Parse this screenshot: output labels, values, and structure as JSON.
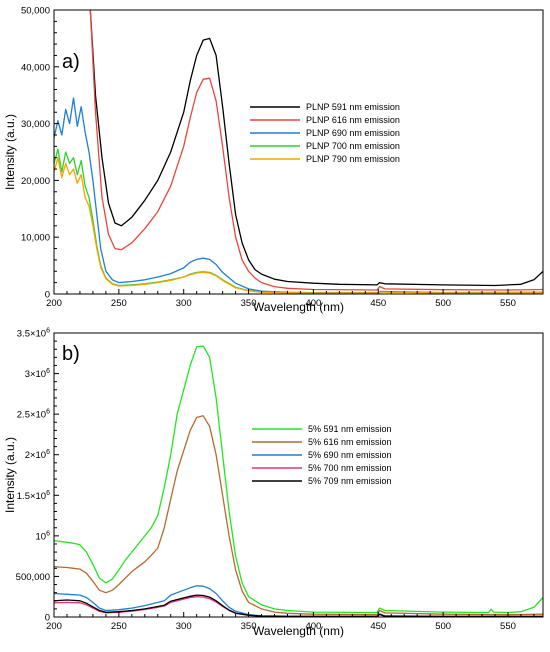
{
  "chart_data": [
    {
      "type": "line",
      "panel_label": "a)",
      "xlabel": "Wavelength (nm)",
      "ylabel": "Intensity (a.u.)",
      "xlim": [
        200,
        577
      ],
      "ylim": [
        0,
        50000
      ],
      "x_ticks": [
        200,
        250,
        300,
        350,
        400,
        450,
        500,
        550
      ],
      "x_tick_labels": [
        "200",
        "250",
        "300",
        "350",
        "400",
        "450",
        "500",
        "550"
      ],
      "y_ticks": [
        0,
        10000,
        20000,
        30000,
        40000,
        50000
      ],
      "y_tick_labels": [
        "0",
        "10,000",
        "20,000",
        "30,000",
        "40,000",
        "50,000"
      ],
      "legend_position": "right",
      "series": [
        {
          "name": "PLNP 591 nm emission",
          "color": "#000000",
          "x": [
            228,
            232,
            237,
            242,
            247,
            252,
            260,
            270,
            280,
            290,
            300,
            305,
            310,
            315,
            320,
            325,
            330,
            335,
            340,
            345,
            350,
            355,
            360,
            370,
            380,
            400,
            420,
            449,
            451,
            455,
            500,
            540,
            560,
            570,
            577
          ],
          "y": [
            50000,
            35000,
            24000,
            16000,
            12500,
            12000,
            13500,
            16500,
            20000,
            25000,
            32000,
            37500,
            42000,
            44700,
            45000,
            42000,
            33000,
            23000,
            14000,
            9000,
            6000,
            4300,
            3500,
            2600,
            2200,
            1900,
            1700,
            1600,
            2000,
            1800,
            1600,
            1500,
            1700,
            2500,
            4000
          ]
        },
        {
          "name": "PLNP 616 nm emission",
          "color": "#e8463a",
          "x": [
            228,
            232,
            237,
            242,
            247,
            252,
            260,
            270,
            280,
            290,
            300,
            305,
            310,
            315,
            320,
            325,
            330,
            335,
            340,
            345,
            350,
            355,
            360,
            370,
            380,
            400,
            449,
            451,
            455,
            500,
            550,
            577
          ],
          "y": [
            50000,
            32000,
            17000,
            10500,
            8000,
            7800,
            9000,
            11500,
            14500,
            19000,
            26000,
            31000,
            35500,
            37800,
            38000,
            34000,
            26000,
            17000,
            10000,
            6000,
            4000,
            2800,
            2000,
            1300,
            1000,
            800,
            700,
            1300,
            900,
            750,
            700,
            800
          ]
        },
        {
          "name": "PLNP 690 nm emission",
          "color": "#1f7fd6",
          "x": [
            200,
            203,
            206,
            209,
            212,
            215,
            218,
            221,
            224,
            227,
            230,
            233,
            236,
            240,
            245,
            250,
            260,
            270,
            280,
            290,
            300,
            305,
            310,
            315,
            320,
            325,
            330,
            340,
            350,
            360,
            380,
            400,
            450,
            452,
            500,
            577
          ],
          "y": [
            27500,
            30500,
            28000,
            32500,
            30000,
            34500,
            29500,
            33000,
            28500,
            25000,
            20000,
            14000,
            8000,
            4000,
            2500,
            2000,
            2200,
            2500,
            3000,
            3600,
            4600,
            5600,
            6100,
            6300,
            6100,
            5200,
            3800,
            1900,
            900,
            500,
            300,
            250,
            250,
            450,
            250,
            300
          ]
        },
        {
          "name": "PLNP 700 nm emission",
          "color": "#2fcf2f",
          "x": [
            200,
            203,
            206,
            209,
            212,
            215,
            218,
            221,
            224,
            227,
            230,
            233,
            236,
            240,
            245,
            250,
            260,
            270,
            280,
            290,
            300,
            305,
            310,
            315,
            320,
            325,
            330,
            340,
            350,
            360,
            380,
            400,
            450,
            452,
            500,
            577
          ],
          "y": [
            23000,
            25500,
            21500,
            25000,
            23000,
            24000,
            21000,
            23500,
            19000,
            17000,
            13000,
            8500,
            5000,
            2800,
            1800,
            1500,
            1600,
            1800,
            2100,
            2500,
            3000,
            3500,
            3800,
            3900,
            3800,
            3300,
            2500,
            1200,
            600,
            350,
            250,
            200,
            200,
            350,
            200,
            250
          ]
        },
        {
          "name": "PLNP 790 nm emission",
          "color": "#f5a300",
          "x": [
            200,
            203,
            206,
            209,
            212,
            215,
            218,
            221,
            224,
            227,
            230,
            233,
            236,
            240,
            245,
            250,
            260,
            270,
            280,
            290,
            300,
            305,
            310,
            315,
            320,
            325,
            330,
            340,
            350,
            360,
            380,
            400,
            450,
            452,
            500,
            577
          ],
          "y": [
            21500,
            24000,
            20500,
            23000,
            21000,
            22000,
            19500,
            21000,
            17000,
            15500,
            12000,
            8000,
            4700,
            2700,
            1700,
            1400,
            1500,
            1700,
            2000,
            2400,
            3000,
            3400,
            3700,
            3800,
            3700,
            3200,
            2400,
            1100,
            550,
            320,
            230,
            200,
            200,
            330,
            200,
            230
          ]
        }
      ]
    },
    {
      "type": "line",
      "panel_label": "b)",
      "xlabel": "Wavelength (nm)",
      "ylabel": "Intensity (a.u.)",
      "xlim": [
        200,
        577
      ],
      "ylim": [
        0,
        3500000
      ],
      "x_ticks": [
        200,
        250,
        300,
        350,
        400,
        450,
        500,
        550
      ],
      "x_tick_labels": [
        "200",
        "250",
        "300",
        "350",
        "400",
        "450",
        "500",
        "550"
      ],
      "y_ticks": [
        0,
        500000,
        1000000,
        1500000,
        2000000,
        2500000,
        3000000,
        3500000
      ],
      "y_tick_labels": [
        {
          "base": "0",
          "exp": ""
        },
        {
          "base": "500,000",
          "exp": ""
        },
        {
          "base": "10",
          "exp": "6"
        },
        {
          "base": "1.5×10",
          "exp": "6"
        },
        {
          "base": "2×10",
          "exp": "6"
        },
        {
          "base": "2.5×10",
          "exp": "6"
        },
        {
          "base": "3×10",
          "exp": "6"
        },
        {
          "base": "3.5×10",
          "exp": "6"
        }
      ],
      "legend_position": "right",
      "series": [
        {
          "name": "5% 591 nm emission",
          "color": "#22e622",
          "x": [
            200,
            205,
            210,
            215,
            220,
            225,
            230,
            235,
            240,
            245,
            250,
            255,
            260,
            265,
            270,
            275,
            280,
            285,
            290,
            295,
            300,
            305,
            310,
            315,
            320,
            325,
            330,
            335,
            340,
            345,
            350,
            360,
            370,
            380,
            400,
            449,
            451,
            455,
            500,
            535,
            537,
            539,
            550,
            560,
            570,
            577
          ],
          "y": [
            940000,
            930000,
            920000,
            910000,
            890000,
            800000,
            650000,
            480000,
            420000,
            470000,
            580000,
            700000,
            800000,
            900000,
            1000000,
            1100000,
            1250000,
            1600000,
            2000000,
            2500000,
            2800000,
            3100000,
            3330000,
            3340000,
            3200000,
            2700000,
            2000000,
            1300000,
            750000,
            420000,
            250000,
            150000,
            100000,
            80000,
            60000,
            55000,
            110000,
            80000,
            60000,
            55000,
            95000,
            60000,
            55000,
            65000,
            120000,
            240000
          ]
        },
        {
          "name": "5% 616 nm emission",
          "color": "#b8692f",
          "x": [
            200,
            205,
            210,
            215,
            220,
            225,
            230,
            235,
            240,
            245,
            250,
            255,
            260,
            265,
            270,
            275,
            280,
            285,
            290,
            295,
            300,
            305,
            310,
            315,
            320,
            325,
            330,
            335,
            340,
            345,
            350,
            360,
            370,
            380,
            400,
            449,
            451,
            455,
            500,
            550,
            577
          ],
          "y": [
            620000,
            615000,
            610000,
            600000,
            590000,
            540000,
            440000,
            330000,
            300000,
            330000,
            400000,
            480000,
            560000,
            620000,
            680000,
            760000,
            850000,
            1100000,
            1450000,
            1800000,
            2050000,
            2300000,
            2460000,
            2480000,
            2350000,
            2000000,
            1500000,
            1000000,
            580000,
            320000,
            180000,
            100000,
            60000,
            45000,
            35000,
            30000,
            80000,
            50000,
            35000,
            30000,
            35000
          ]
        },
        {
          "name": "5% 690 nm emission",
          "color": "#1f7fd6",
          "x": [
            200,
            205,
            210,
            215,
            220,
            225,
            230,
            235,
            240,
            250,
            260,
            270,
            280,
            285,
            290,
            300,
            305,
            310,
            315,
            320,
            325,
            330,
            335,
            340,
            350,
            360,
            380,
            449,
            451,
            455,
            500,
            577
          ],
          "y": [
            290000,
            285000,
            280000,
            275000,
            270000,
            240000,
            180000,
            110000,
            80000,
            90000,
            110000,
            140000,
            180000,
            200000,
            270000,
            330000,
            360000,
            385000,
            380000,
            350000,
            290000,
            200000,
            120000,
            70000,
            30000,
            15000,
            10000,
            8000,
            40000,
            15000,
            8000,
            8000
          ]
        },
        {
          "name": "5% 700 nm emission",
          "color": "#e8337a",
          "x": [
            200,
            205,
            210,
            215,
            220,
            225,
            230,
            235,
            240,
            250,
            260,
            270,
            280,
            285,
            290,
            300,
            305,
            310,
            315,
            320,
            325,
            330,
            335,
            340,
            350,
            360,
            380,
            449,
            451,
            455,
            500,
            577
          ],
          "y": [
            175000,
            178000,
            180000,
            178000,
            175000,
            150000,
            110000,
            70000,
            50000,
            58000,
            72000,
            92000,
            120000,
            135000,
            180000,
            220000,
            240000,
            250000,
            245000,
            225000,
            185000,
            130000,
            80000,
            45000,
            20000,
            10000,
            7000,
            6000,
            30000,
            10000,
            6000,
            6000
          ]
        },
        {
          "name": "5% 709 nm emission",
          "color": "#000000",
          "x": [
            200,
            205,
            210,
            215,
            220,
            225,
            230,
            235,
            240,
            250,
            260,
            270,
            280,
            285,
            290,
            300,
            305,
            310,
            315,
            320,
            325,
            330,
            335,
            340,
            350,
            360,
            380,
            449,
            451,
            455,
            500,
            577
          ],
          "y": [
            200000,
            205000,
            210000,
            205000,
            200000,
            170000,
            125000,
            80000,
            58000,
            65000,
            80000,
            100000,
            130000,
            145000,
            195000,
            235000,
            255000,
            270000,
            265000,
            245000,
            200000,
            140000,
            85000,
            48000,
            22000,
            11000,
            8000,
            7000,
            32000,
            11000,
            7000,
            7000
          ]
        }
      ]
    }
  ]
}
